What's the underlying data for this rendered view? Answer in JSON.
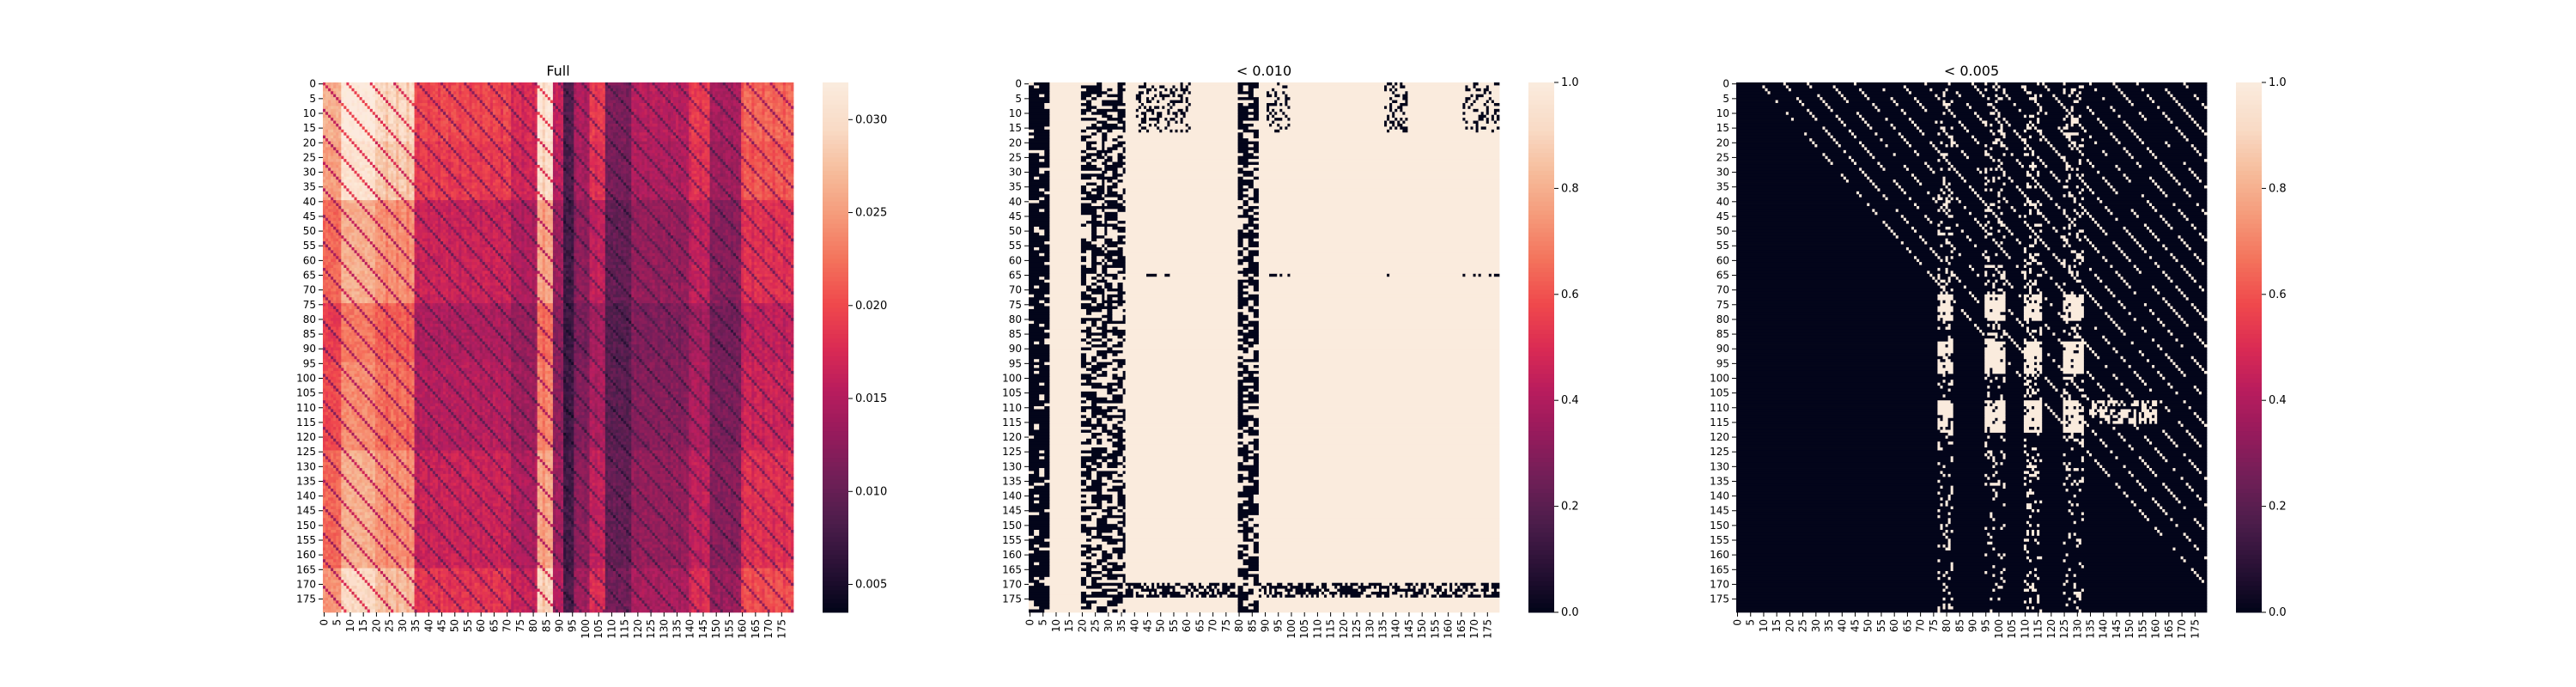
{
  "chart_data": [
    {
      "type": "heatmap",
      "title": "Full",
      "pattern": "full",
      "n": 180,
      "tick_step": 5,
      "tick_labels": [
        "0",
        "5",
        "10",
        "15",
        "20",
        "25",
        "30",
        "35",
        "40",
        "45",
        "50",
        "55",
        "60",
        "65",
        "70",
        "75",
        "80",
        "85",
        "90",
        "95",
        "100",
        "105",
        "110",
        "115",
        "120",
        "125",
        "130",
        "135",
        "140",
        "145",
        "150",
        "155",
        "160",
        "165",
        "170",
        "175"
      ],
      "colorbar": {
        "min": 0.0035,
        "max": 0.032,
        "ticks": [
          "0.005",
          "0.010",
          "0.015",
          "0.020",
          "0.025",
          "0.030"
        ],
        "tick_values": [
          0.005,
          0.01,
          0.015,
          0.02,
          0.025,
          0.03
        ]
      },
      "colormap": "rocket",
      "xlabel": "",
      "ylabel": ""
    },
    {
      "type": "heatmap",
      "title": "< 0.010",
      "pattern": "threshold_010",
      "n": 180,
      "tick_step": 5,
      "tick_labels": [
        "0",
        "5",
        "10",
        "15",
        "20",
        "25",
        "30",
        "35",
        "40",
        "45",
        "50",
        "55",
        "60",
        "65",
        "70",
        "75",
        "80",
        "85",
        "90",
        "95",
        "100",
        "105",
        "110",
        "115",
        "120",
        "125",
        "130",
        "135",
        "140",
        "145",
        "150",
        "155",
        "160",
        "165",
        "170",
        "175"
      ],
      "colorbar": {
        "min": 0.0,
        "max": 1.0,
        "ticks": [
          "0.0",
          "0.2",
          "0.4",
          "0.6",
          "0.8",
          "1.0"
        ],
        "tick_values": [
          0.0,
          0.2,
          0.4,
          0.6,
          0.8,
          1.0
        ]
      },
      "colormap": "rocket",
      "xlabel": "",
      "ylabel": ""
    },
    {
      "type": "heatmap",
      "title": "< 0.005",
      "pattern": "threshold_005",
      "n": 180,
      "tick_step": 5,
      "tick_labels": [
        "0",
        "5",
        "10",
        "15",
        "20",
        "25",
        "30",
        "35",
        "40",
        "45",
        "50",
        "55",
        "60",
        "65",
        "70",
        "75",
        "80",
        "85",
        "90",
        "95",
        "100",
        "105",
        "110",
        "115",
        "120",
        "125",
        "130",
        "135",
        "140",
        "145",
        "150",
        "155",
        "160",
        "165",
        "170",
        "175"
      ],
      "colorbar": {
        "min": 0.0,
        "max": 1.0,
        "ticks": [
          "0.0",
          "0.2",
          "0.4",
          "0.6",
          "0.8",
          "1.0"
        ],
        "tick_values": [
          0.0,
          0.2,
          0.4,
          0.6,
          0.8,
          1.0
        ]
      },
      "colormap": "rocket",
      "xlabel": "",
      "ylabel": ""
    }
  ],
  "colors": {
    "background": "#ffffff",
    "text": "#000000",
    "rocket_stops": [
      "#03051a",
      "#2a1136",
      "#4c1d4b",
      "#701f57",
      "#951b5c",
      "#b81c5d",
      "#db2b53",
      "#f0494c",
      "#f3735c",
      "#f59a7a",
      "#f6bc9b",
      "#f9dbc6",
      "#faebdd"
    ]
  }
}
